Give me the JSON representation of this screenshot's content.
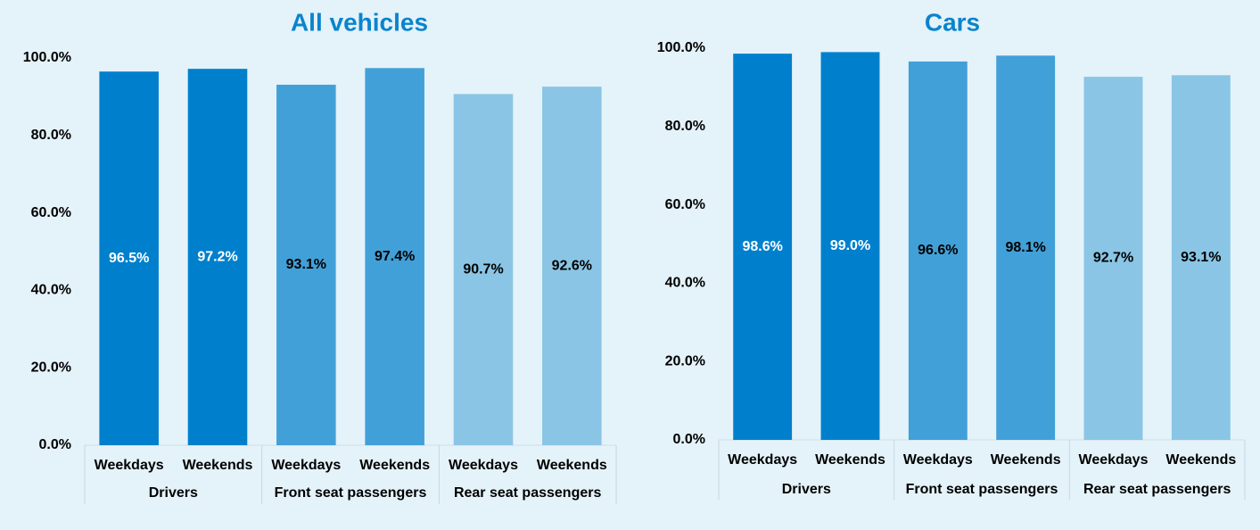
{
  "chart_data": [
    {
      "type": "bar",
      "title": "All vehicles",
      "categories": [
        "Weekdays",
        "Weekends",
        "Weekdays",
        "Weekends",
        "Weekdays",
        "Weekends"
      ],
      "groups": [
        "Drivers",
        "Front seat passengers",
        "Rear seat passengers"
      ],
      "values": [
        96.5,
        97.2,
        93.1,
        97.4,
        90.7,
        92.6
      ],
      "value_labels": [
        "96.5%",
        "97.2%",
        "93.1%",
        "97.4%",
        "90.7%",
        "92.6%"
      ],
      "colors": [
        "#0080cc",
        "#0080cc",
        "#42a0d8",
        "#42a0d8",
        "#8ac5e5",
        "#8ac5e5"
      ],
      "label_colors": [
        "#ffffff",
        "#ffffff",
        "#000000",
        "#000000",
        "#000000",
        "#000000"
      ],
      "ylim": [
        0,
        100
      ],
      "yticks": [
        {
          "value": 0,
          "label": "0.0%"
        },
        {
          "value": 20,
          "label": "20.0%"
        },
        {
          "value": 40,
          "label": "40.0%"
        },
        {
          "value": 60,
          "label": "60.0%"
        },
        {
          "value": 80,
          "label": "80.0%"
        },
        {
          "value": 100,
          "label": "100.0%"
        }
      ]
    },
    {
      "type": "bar",
      "title": "Cars",
      "categories": [
        "Weekdays",
        "Weekends",
        "Weekdays",
        "Weekends",
        "Weekdays",
        "Weekends"
      ],
      "groups": [
        "Drivers",
        "Front seat passengers",
        "Rear seat passengers"
      ],
      "values": [
        98.6,
        99.0,
        96.6,
        98.1,
        92.7,
        93.1
      ],
      "value_labels": [
        "98.6%",
        "99.0%",
        "96.6%",
        "98.1%",
        "92.7%",
        "93.1%"
      ],
      "colors": [
        "#0080cc",
        "#0080cc",
        "#42a0d8",
        "#42a0d8",
        "#8ac5e5",
        "#8ac5e5"
      ],
      "label_colors": [
        "#ffffff",
        "#ffffff",
        "#000000",
        "#000000",
        "#000000",
        "#000000"
      ],
      "ylim": [
        0,
        100
      ],
      "yticks": [
        {
          "value": 0,
          "label": "0.0%"
        },
        {
          "value": 20,
          "label": "20.0%"
        },
        {
          "value": 40,
          "label": "40.0%"
        },
        {
          "value": 60,
          "label": "60.0%"
        },
        {
          "value": 80,
          "label": "80.0%"
        },
        {
          "value": 100,
          "label": "100.0%"
        }
      ]
    }
  ]
}
